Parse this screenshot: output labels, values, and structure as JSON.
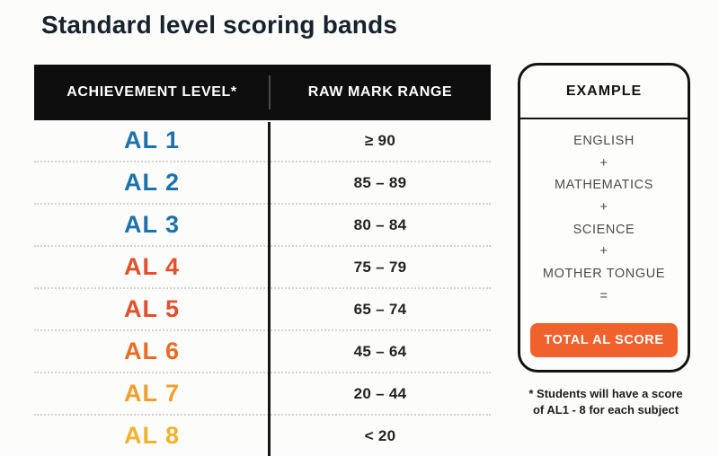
{
  "page": {
    "title": "Standard level scoring bands"
  },
  "table": {
    "headers": [
      "ACHIEVEMENT LEVEL*",
      "RAW MARK RANGE"
    ],
    "rows": [
      {
        "level": "AL 1",
        "range": "≥ 90",
        "color": "#1d71ad"
      },
      {
        "level": "AL 2",
        "range": "85 – 89",
        "color": "#1d71ad"
      },
      {
        "level": "AL 3",
        "range": "80 – 84",
        "color": "#1d71ad"
      },
      {
        "level": "AL 4",
        "range": "75 – 79",
        "color": "#e2502c"
      },
      {
        "level": "AL 5",
        "range": "65 – 74",
        "color": "#e2502c"
      },
      {
        "level": "AL 6",
        "range": "45 – 64",
        "color": "#ea6c26"
      },
      {
        "level": "AL 7",
        "range": "20 – 44",
        "color": "#f09f2f"
      },
      {
        "level": "AL 8",
        "range": "< 20",
        "color": "#f1b32f"
      }
    ]
  },
  "example": {
    "title": "EXAMPLE",
    "lines": [
      "ENGLISH",
      "+",
      "MATHEMATICS",
      "+",
      "SCIENCE",
      "+",
      "MOTHER TONGUE",
      "="
    ],
    "button_label": "TOTAL AL SCORE",
    "button_color": "#f1612c"
  },
  "footnote": "* Students will have a score of AL1 - 8 for each subject",
  "colors": {
    "header_bg": "#0e0e0e",
    "blue": "#1d71ad",
    "red_orange": "#e2502c",
    "orange": "#ea6c26",
    "amber": "#f09f2f",
    "yellow": "#f1b32f",
    "accent_orange": "#f1612c"
  },
  "chart_data": {
    "type": "table",
    "title": "Standard level scoring bands",
    "columns": [
      "ACHIEVEMENT LEVEL*",
      "RAW MARK RANGE"
    ],
    "rows": [
      [
        "AL 1",
        "≥ 90"
      ],
      [
        "AL 2",
        "85 – 89"
      ],
      [
        "AL 3",
        "80 – 84"
      ],
      [
        "AL 4",
        "75 – 79"
      ],
      [
        "AL 5",
        "65 – 74"
      ],
      [
        "AL 6",
        "45 – 64"
      ],
      [
        "AL 7",
        "20 – 44"
      ],
      [
        "AL 8",
        "< 20"
      ]
    ],
    "annotations": [
      "EXAMPLE: ENGLISH + MATHEMATICS + SCIENCE + MOTHER TONGUE = TOTAL AL SCORE",
      "* Students will have a score of AL1 - 8 for each subject"
    ]
  }
}
